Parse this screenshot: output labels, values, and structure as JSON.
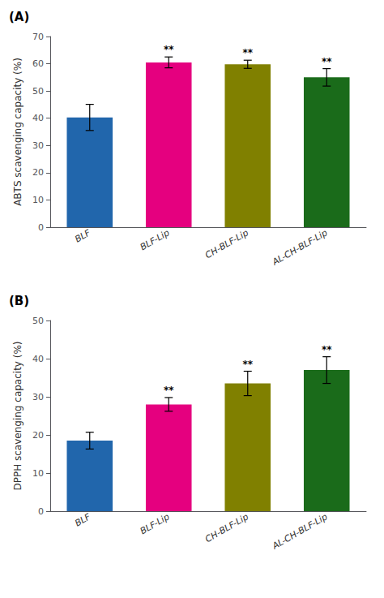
{
  "chart_data": [
    {
      "type": "bar",
      "title": "(A)",
      "categories": [
        "BLF",
        "BLF-Lip",
        "CH-BLF-Lip",
        "AL-CH-BLF-Lip"
      ],
      "values": [
        40.3,
        60.5,
        59.8,
        55.0
      ],
      "errors": [
        4.8,
        2.0,
        1.5,
        3.2
      ],
      "colors": [
        "#2166ac",
        "#e5007f",
        "#808000",
        "#1a6b1a"
      ],
      "ylabel": "ABTS scavenging capacity (%)",
      "ylim": [
        0,
        70
      ],
      "yticks": [
        0,
        10,
        20,
        30,
        40,
        50,
        60,
        70
      ],
      "annotations": [
        {
          "category": "BLF-Lip",
          "text": "**"
        },
        {
          "category": "CH-BLF-Lip",
          "text": "**"
        },
        {
          "category": "AL-CH-BLF-Lip",
          "text": "**"
        }
      ],
      "grid": false
    },
    {
      "type": "bar",
      "title": "(B)",
      "categories": [
        "BLF",
        "BLF-Lip",
        "CH-BLF-Lip",
        "AL-CH-BLF-Lip"
      ],
      "values": [
        18.5,
        28.0,
        33.5,
        37.0
      ],
      "errors": [
        2.2,
        1.8,
        3.2,
        3.5
      ],
      "colors": [
        "#2166ac",
        "#e5007f",
        "#808000",
        "#1a6b1a"
      ],
      "ylabel": "DPPH scavenging capacity (%)",
      "ylim": [
        0,
        50
      ],
      "yticks": [
        0,
        10,
        20,
        30,
        40,
        50
      ],
      "annotations": [
        {
          "category": "BLF-Lip",
          "text": "**"
        },
        {
          "category": "CH-BLF-Lip",
          "text": "**"
        },
        {
          "category": "AL-CH-BLF-Lip",
          "text": "**"
        }
      ],
      "grid": false
    }
  ]
}
